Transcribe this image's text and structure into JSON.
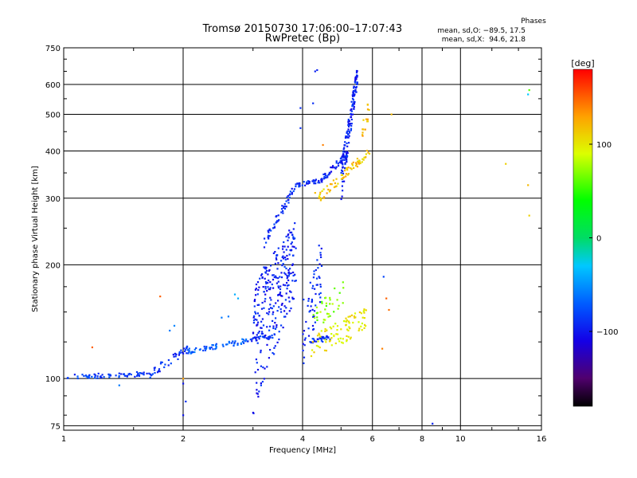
{
  "chart_data": {
    "type": "scatter",
    "title": "Tromsø 20150730 17:06:00–17:07:43",
    "subtitle": "RwPretec (Bp)",
    "xlabel": "Frequency [MHz]",
    "ylabel": "Stationary phase Virtual Height [km]",
    "x_scale": "log",
    "y_scale": "log",
    "xlim": [
      1,
      16
    ],
    "ylim": [
      73,
      750
    ],
    "x_ticks": [
      1,
      2,
      4,
      6,
      8,
      10,
      16
    ],
    "x_tick_labels": [
      "1",
      "2",
      "4",
      "6",
      "8",
      "10",
      "16"
    ],
    "y_ticks": [
      75,
      100,
      200,
      300,
      400,
      500,
      600,
      750
    ],
    "y_tick_labels": [
      "75",
      "100",
      "200",
      "300",
      "400",
      "500",
      "600",
      "750"
    ],
    "grid": true,
    "colorbar": {
      "label": "[deg]",
      "range": [
        -180,
        180
      ],
      "ticks": [
        100,
        0,
        -100
      ],
      "tick_labels": [
        "100",
        "0",
        "−100"
      ]
    },
    "legend": {
      "heading": "Phases",
      "o_line": "mean, sd,O: −89.5, 17.5",
      "x_line": "mean, sd,X:  94.6, 21.8"
    },
    "series": [
      {
        "name": "O",
        "color_by": "phase",
        "phase_mean": -89.5,
        "phase_sd": 17.5,
        "segments": [
          {
            "f0": 1.02,
            "f1": 1.7,
            "h0": 101,
            "h1": 103,
            "spread": 1.5,
            "n": 70,
            "phase": -85
          },
          {
            "f0": 1.65,
            "f1": 2.05,
            "h0": 103,
            "h1": 120,
            "spread": 3,
            "n": 40,
            "phase": -90
          },
          {
            "f0": 2.05,
            "f1": 2.9,
            "h0": 118,
            "h1": 126,
            "spread": 2,
            "n": 60,
            "phase": -70
          },
          {
            "f0": 2.9,
            "f1": 3.4,
            "h0": 126,
            "h1": 130,
            "spread": 1.5,
            "n": 30,
            "phase": -90
          },
          {
            "f0": 3.0,
            "f1": 3.85,
            "h0": 130,
            "h1": 215,
            "spread": 50,
            "n": 280,
            "phase": -95
          },
          {
            "f0": 3.2,
            "f1": 3.85,
            "h0": 230,
            "h1": 325,
            "spread": 8,
            "n": 55,
            "phase": -90
          },
          {
            "f0": 3.85,
            "f1": 4.5,
            "h0": 325,
            "h1": 335,
            "spread": 4,
            "n": 40,
            "phase": -90
          },
          {
            "f0": 4.0,
            "f1": 4.5,
            "h0": 130,
            "h1": 200,
            "spread": 30,
            "n": 60,
            "phase": -92
          },
          {
            "f0": 4.2,
            "f1": 4.7,
            "h0": 126,
            "h1": 128,
            "spread": 2,
            "n": 30,
            "phase": -90
          },
          {
            "f0": 4.5,
            "f1": 5.2,
            "h0": 338,
            "h1": 395,
            "spread": 8,
            "n": 40,
            "phase": -95
          },
          {
            "f0": 5.0,
            "f1": 5.5,
            "h0": 330,
            "h1": 640,
            "spread": 40,
            "n": 150,
            "phase": -95
          }
        ],
        "points": [
          {
            "x": 1.38,
            "y": 96,
            "phase": -60
          },
          {
            "x": 2.0,
            "y": 80,
            "phase": -100
          },
          {
            "x": 2.0,
            "y": 97,
            "phase": -100
          },
          {
            "x": 2.03,
            "y": 87,
            "phase": -90
          },
          {
            "x": 1.85,
            "y": 134,
            "phase": -60
          },
          {
            "x": 1.9,
            "y": 138,
            "phase": -55
          },
          {
            "x": 2.7,
            "y": 167,
            "phase": -40
          },
          {
            "x": 2.75,
            "y": 163,
            "phase": -40
          },
          {
            "x": 2.6,
            "y": 146,
            "phase": -60
          },
          {
            "x": 2.5,
            "y": 145,
            "phase": -60
          },
          {
            "x": 3.95,
            "y": 520,
            "phase": -90
          },
          {
            "x": 3.95,
            "y": 460,
            "phase": -90
          },
          {
            "x": 4.3,
            "y": 650,
            "phase": -95
          },
          {
            "x": 4.35,
            "y": 655,
            "phase": -95
          },
          {
            "x": 4.25,
            "y": 535,
            "phase": -90
          },
          {
            "x": 4.4,
            "y": 225,
            "phase": -90
          },
          {
            "x": 6.4,
            "y": 186,
            "phase": -80
          },
          {
            "x": 8.5,
            "y": 76,
            "phase": -95
          },
          {
            "x": 14.8,
            "y": 565,
            "phase": -30
          }
        ]
      },
      {
        "name": "X",
        "color_by": "phase",
        "phase_mean": 94.6,
        "phase_sd": 21.8,
        "segments": [
          {
            "f0": 4.2,
            "f1": 5.8,
            "h0": 120,
            "h1": 145,
            "spread": 10,
            "n": 90,
            "phase": 100
          },
          {
            "f0": 4.2,
            "f1": 5.2,
            "h0": 140,
            "h1": 175,
            "spread": 12,
            "n": 35,
            "phase": 70
          },
          {
            "f0": 4.4,
            "f1": 5.9,
            "h0": 300,
            "h1": 400,
            "spread": 10,
            "n": 70,
            "phase": 115
          },
          {
            "f0": 5.6,
            "f1": 6.0,
            "h0": 440,
            "h1": 560,
            "spread": 30,
            "n": 15,
            "phase": 120
          }
        ],
        "points": [
          {
            "x": 1.18,
            "y": 121,
            "phase": 150
          },
          {
            "x": 1.75,
            "y": 165,
            "phase": 150
          },
          {
            "x": 2.0,
            "y": 100,
            "phase": 130
          },
          {
            "x": 4.3,
            "y": 310,
            "phase": 120
          },
          {
            "x": 4.4,
            "y": 300,
            "phase": 125
          },
          {
            "x": 4.5,
            "y": 415,
            "phase": 140
          },
          {
            "x": 6.35,
            "y": 120,
            "phase": 140
          },
          {
            "x": 6.5,
            "y": 163,
            "phase": 150
          },
          {
            "x": 6.6,
            "y": 152,
            "phase": 145
          },
          {
            "x": 6.7,
            "y": 500,
            "phase": 120
          },
          {
            "x": 13.0,
            "y": 370,
            "phase": 110
          },
          {
            "x": 14.8,
            "y": 325,
            "phase": 120
          },
          {
            "x": 14.9,
            "y": 270,
            "phase": 110
          },
          {
            "x": 14.9,
            "y": 580,
            "phase": 60
          }
        ]
      }
    ]
  }
}
